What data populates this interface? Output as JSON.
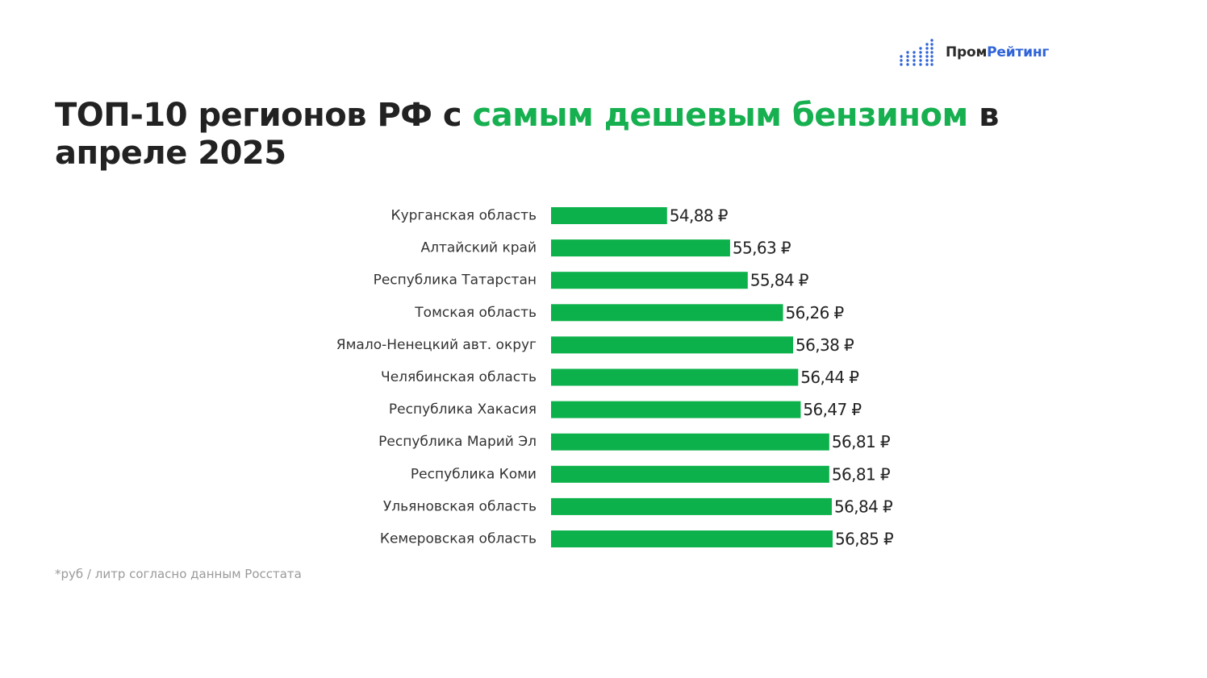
{
  "logo": {
    "part1": "Пром",
    "part2": "Рейтинг",
    "accent_color": "#2f63d8"
  },
  "title": {
    "part1": "ТОП-10 регионов РФ с ",
    "part2_highlight": "самым дешевым бензином",
    "part3": " в апреле 2025",
    "highlight_color": "#17b050"
  },
  "chart_data": {
    "type": "bar",
    "orientation": "horizontal",
    "categories": [
      "Курганская область",
      "Алтайский край",
      "Республика Татарстан",
      "Томская область",
      "Ямало-Ненецкий авт. округ",
      "Челябинская область",
      "Республика Хакасия",
      "Республика Марий Эл",
      "Республика Коми",
      "Ульяновская область",
      "Кемеровская область"
    ],
    "values": [
      54.88,
      55.63,
      55.84,
      56.26,
      56.38,
      56.44,
      56.47,
      56.81,
      56.81,
      56.84,
      56.85
    ],
    "value_labels": [
      "54,88 ₽",
      "55,63 ₽",
      "55,84 ₽",
      "56,26 ₽",
      "56,38 ₽",
      "56,44 ₽",
      "56,47 ₽",
      "56,81 ₽",
      "56,81 ₽",
      "56,84 ₽",
      "56,85 ₽"
    ],
    "xlim": [
      53.5,
      56.85
    ],
    "bar_color": "#0db14b",
    "grid": false,
    "legend": "none"
  },
  "footnote": "*руб / литр согласно данным Росстата"
}
